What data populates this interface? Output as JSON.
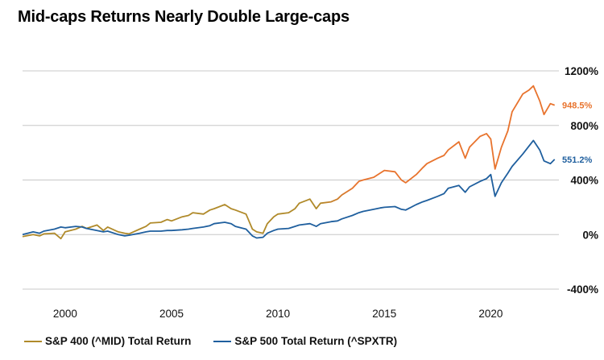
{
  "chart_data": {
    "type": "line",
    "title": "Mid-caps Returns Nearly Double Large-caps",
    "xlabel": "",
    "ylabel": "",
    "xlim": [
      1998.0,
      2023.2
    ],
    "ylim": [
      -400,
      1200
    ],
    "x_ticks": [
      2000,
      2005,
      2010,
      2015,
      2020
    ],
    "x_tick_labels": [
      "2000",
      "2005",
      "2010",
      "2015",
      "2020"
    ],
    "y_ticks": [
      1200,
      800,
      400,
      0,
      -400
    ],
    "y_tick_labels": [
      "1200%",
      "800%",
      "400%",
      "0%",
      "-400%"
    ],
    "grid": "horizontal",
    "legend_position": "bottom",
    "series": [
      {
        "name": "S&P 400 (^MID) Total Return",
        "color_early": "#b08a2a",
        "color_late": "#e8732d",
        "end_label": "948.5%",
        "points": [
          [
            1998.0,
            -15
          ],
          [
            1998.5,
            0
          ],
          [
            1998.8,
            -10
          ],
          [
            1999.0,
            5
          ],
          [
            1999.5,
            10
          ],
          [
            1999.8,
            -30
          ],
          [
            2000.0,
            20
          ],
          [
            2000.5,
            40
          ],
          [
            2000.8,
            60
          ],
          [
            2001.0,
            45
          ],
          [
            2001.5,
            70
          ],
          [
            2001.8,
            30
          ],
          [
            2002.0,
            55
          ],
          [
            2002.5,
            20
          ],
          [
            2002.8,
            10
          ],
          [
            2003.0,
            5
          ],
          [
            2003.5,
            40
          ],
          [
            2003.8,
            60
          ],
          [
            2004.0,
            85
          ],
          [
            2004.5,
            90
          ],
          [
            2004.8,
            110
          ],
          [
            2005.0,
            100
          ],
          [
            2005.5,
            130
          ],
          [
            2005.8,
            140
          ],
          [
            2006.0,
            160
          ],
          [
            2006.5,
            150
          ],
          [
            2006.8,
            180
          ],
          [
            2007.0,
            190
          ],
          [
            2007.5,
            220
          ],
          [
            2007.8,
            190
          ],
          [
            2008.0,
            180
          ],
          [
            2008.5,
            150
          ],
          [
            2008.8,
            40
          ],
          [
            2009.0,
            20
          ],
          [
            2009.3,
            10
          ],
          [
            2009.5,
            80
          ],
          [
            2009.8,
            130
          ],
          [
            2010.0,
            150
          ],
          [
            2010.5,
            160
          ],
          [
            2010.8,
            190
          ],
          [
            2011.0,
            230
          ],
          [
            2011.5,
            260
          ],
          [
            2011.8,
            190
          ],
          [
            2012.0,
            230
          ],
          [
            2012.5,
            240
          ],
          [
            2012.8,
            260
          ],
          [
            2013.0,
            290
          ],
          [
            2013.5,
            340
          ],
          [
            2013.8,
            390
          ],
          [
            2014.0,
            400
          ],
          [
            2014.5,
            420
          ],
          [
            2014.8,
            450
          ],
          [
            2015.0,
            470
          ],
          [
            2015.5,
            460
          ],
          [
            2015.8,
            400
          ],
          [
            2016.0,
            380
          ],
          [
            2016.5,
            440
          ],
          [
            2016.8,
            490
          ],
          [
            2017.0,
            520
          ],
          [
            2017.5,
            560
          ],
          [
            2017.8,
            580
          ],
          [
            2018.0,
            620
          ],
          [
            2018.5,
            680
          ],
          [
            2018.8,
            560
          ],
          [
            2019.0,
            640
          ],
          [
            2019.5,
            720
          ],
          [
            2019.8,
            740
          ],
          [
            2020.0,
            700
          ],
          [
            2020.2,
            480
          ],
          [
            2020.5,
            640
          ],
          [
            2020.8,
            760
          ],
          [
            2021.0,
            900
          ],
          [
            2021.5,
            1030
          ],
          [
            2021.8,
            1060
          ],
          [
            2022.0,
            1090
          ],
          [
            2022.3,
            980
          ],
          [
            2022.5,
            880
          ],
          [
            2022.8,
            960
          ],
          [
            2023.0,
            948.5
          ]
        ]
      },
      {
        "name": "S&P 500 Total Return (^SPXTR)",
        "color": "#1f5f9e",
        "end_label": "551.2%",
        "points": [
          [
            1998.0,
            0
          ],
          [
            1998.5,
            20
          ],
          [
            1998.8,
            10
          ],
          [
            1999.0,
            25
          ],
          [
            1999.5,
            40
          ],
          [
            1999.8,
            55
          ],
          [
            2000.0,
            50
          ],
          [
            2000.5,
            60
          ],
          [
            2000.8,
            55
          ],
          [
            2001.0,
            45
          ],
          [
            2001.5,
            30
          ],
          [
            2001.8,
            20
          ],
          [
            2002.0,
            25
          ],
          [
            2002.5,
            0
          ],
          [
            2002.8,
            -10
          ],
          [
            2003.0,
            -5
          ],
          [
            2003.5,
            10
          ],
          [
            2003.8,
            20
          ],
          [
            2004.0,
            25
          ],
          [
            2004.5,
            25
          ],
          [
            2004.8,
            30
          ],
          [
            2005.0,
            30
          ],
          [
            2005.5,
            35
          ],
          [
            2005.8,
            40
          ],
          [
            2006.0,
            45
          ],
          [
            2006.5,
            55
          ],
          [
            2006.8,
            65
          ],
          [
            2007.0,
            80
          ],
          [
            2007.5,
            90
          ],
          [
            2007.8,
            80
          ],
          [
            2008.0,
            60
          ],
          [
            2008.5,
            40
          ],
          [
            2008.8,
            -10
          ],
          [
            2009.0,
            -25
          ],
          [
            2009.3,
            -20
          ],
          [
            2009.5,
            10
          ],
          [
            2009.8,
            30
          ],
          [
            2010.0,
            40
          ],
          [
            2010.5,
            45
          ],
          [
            2010.8,
            60
          ],
          [
            2011.0,
            70
          ],
          [
            2011.5,
            80
          ],
          [
            2011.8,
            60
          ],
          [
            2012.0,
            80
          ],
          [
            2012.5,
            95
          ],
          [
            2012.8,
            100
          ],
          [
            2013.0,
            115
          ],
          [
            2013.5,
            140
          ],
          [
            2013.8,
            160
          ],
          [
            2014.0,
            170
          ],
          [
            2014.5,
            185
          ],
          [
            2014.8,
            195
          ],
          [
            2015.0,
            200
          ],
          [
            2015.5,
            205
          ],
          [
            2015.8,
            185
          ],
          [
            2016.0,
            180
          ],
          [
            2016.5,
            220
          ],
          [
            2016.8,
            240
          ],
          [
            2017.0,
            250
          ],
          [
            2017.5,
            280
          ],
          [
            2017.8,
            300
          ],
          [
            2018.0,
            340
          ],
          [
            2018.5,
            360
          ],
          [
            2018.8,
            310
          ],
          [
            2019.0,
            350
          ],
          [
            2019.5,
            390
          ],
          [
            2019.8,
            410
          ],
          [
            2020.0,
            440
          ],
          [
            2020.2,
            280
          ],
          [
            2020.5,
            380
          ],
          [
            2020.8,
            450
          ],
          [
            2021.0,
            500
          ],
          [
            2021.5,
            590
          ],
          [
            2021.8,
            650
          ],
          [
            2022.0,
            690
          ],
          [
            2022.3,
            620
          ],
          [
            2022.5,
            540
          ],
          [
            2022.8,
            520
          ],
          [
            2023.0,
            551.2
          ]
        ]
      }
    ]
  }
}
